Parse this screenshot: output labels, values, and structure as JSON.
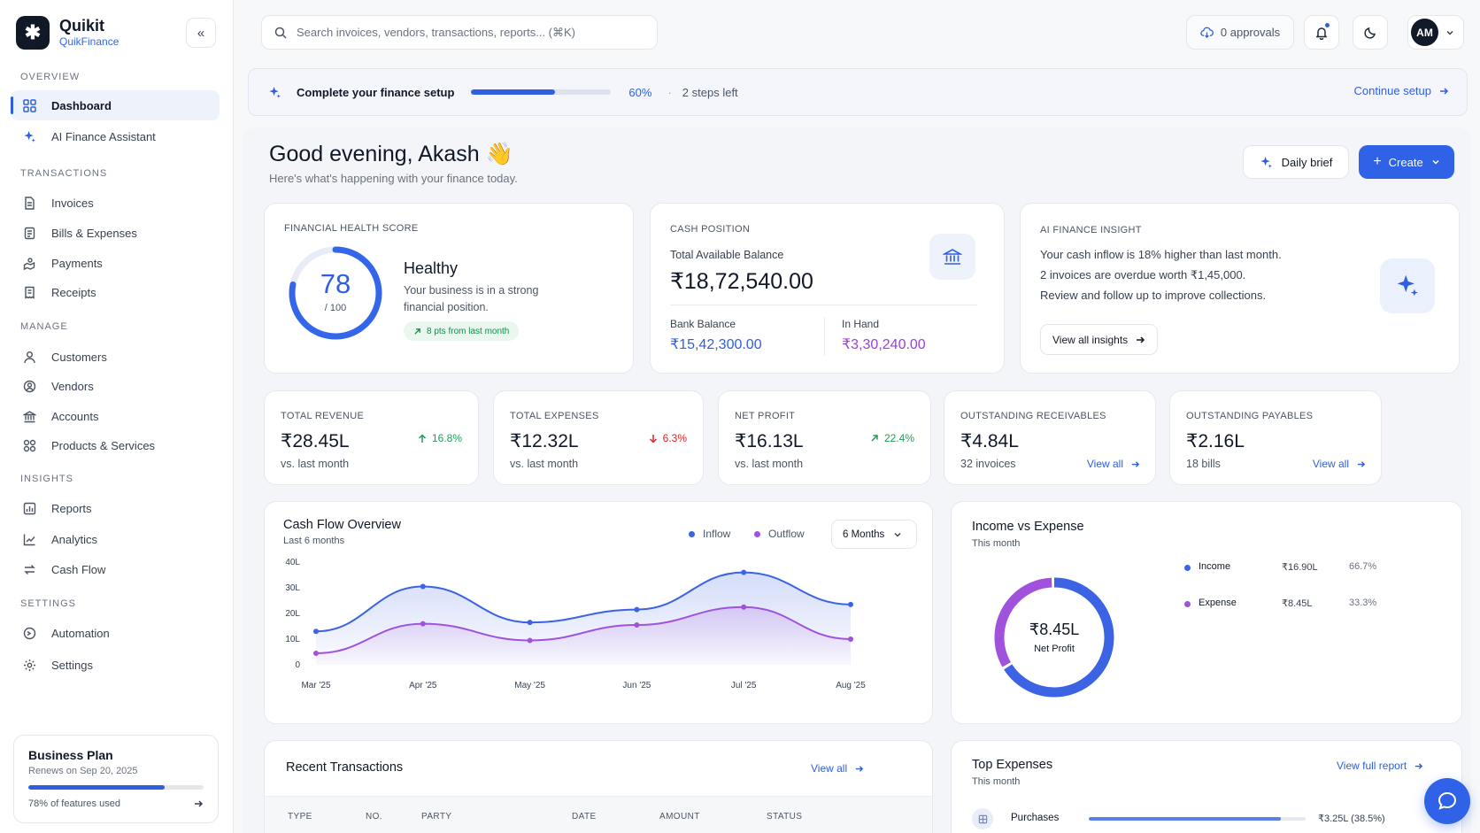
{
  "brand": {
    "logo_glyph": "✱",
    "name": "Quikit",
    "subtitle": "QuikFinance"
  },
  "sidebar": {
    "sections": [
      {
        "title": "OVERVIEW",
        "items": [
          {
            "label": "Dashboard",
            "icon": "grid-icon",
            "active": true
          },
          {
            "label": "AI Finance Assistant",
            "icon": "sparkle-icon"
          }
        ]
      },
      {
        "title": "TRANSACTIONS",
        "items": [
          {
            "label": "Invoices",
            "icon": "invoice-icon"
          },
          {
            "label": "Bills & Expenses",
            "icon": "bill-icon"
          },
          {
            "label": "Payments",
            "icon": "payment-icon"
          },
          {
            "label": "Receipts",
            "icon": "receipt-icon"
          }
        ]
      },
      {
        "title": "MANAGE",
        "items": [
          {
            "label": "Customers",
            "icon": "customers-icon"
          },
          {
            "label": "Vendors",
            "icon": "vendors-icon"
          },
          {
            "label": "Accounts",
            "icon": "bank-icon"
          },
          {
            "label": "Products & Services",
            "icon": "products-icon"
          }
        ]
      },
      {
        "title": "INSIGHTS",
        "items": [
          {
            "label": "Reports",
            "icon": "reports-icon"
          },
          {
            "label": "Analytics",
            "icon": "analytics-icon"
          },
          {
            "label": "Cash Flow",
            "icon": "cashflow-icon"
          }
        ]
      },
      {
        "title": "SETTINGS",
        "items": [
          {
            "label": "Automation",
            "icon": "automation-icon"
          },
          {
            "label": "Settings",
            "icon": "gear-icon"
          }
        ]
      }
    ],
    "plan": {
      "title": "Business Plan",
      "renew": "Renews on Sep 20, 2025",
      "used_label": "78% of features used",
      "used_fraction": 0.78
    }
  },
  "topbar": {
    "search_placeholder": "Search invoices, vendors, transactions, reports... (⌘K)",
    "approvals": "0 approvals",
    "avatar": "AM"
  },
  "setup": {
    "title": "Complete your finance setup",
    "progress_label": "60%",
    "progress_fraction": 0.6,
    "dot": "·",
    "steps_left": "2 steps left",
    "link": "Continue setup"
  },
  "header": {
    "greeting": "Good evening, Akash 👋",
    "subtitle": "Here's what's happening with your finance today.",
    "brief_label": "Daily brief",
    "create_label": "Create"
  },
  "health": {
    "label": "FINANCIAL HEALTH SCORE",
    "score": "78",
    "score_value": 78,
    "max": "/ 100",
    "status": "Healthy",
    "description": "Your business is in a strong financial position.",
    "change": "8 pts from last month"
  },
  "cash": {
    "label": "CASH POSITION",
    "sub": "Total Available Balance",
    "total": "₹18,72,540.00",
    "bank_label": "Bank Balance",
    "bank_value": "₹15,42,300.00",
    "hand_label": "In Hand",
    "hand_value": "₹3,30,240.00"
  },
  "insight": {
    "label": "AI FINANCE INSIGHT",
    "lines": [
      "Your cash inflow is 18% higher than last month.",
      "2 invoices are overdue worth ₹1,45,000.",
      "Review and follow up to improve collections."
    ],
    "button": "View all insights"
  },
  "kpis": [
    {
      "label": "TOTAL REVENUE",
      "value": "₹28.45L",
      "sub": "vs. last month",
      "trend": "16.8%",
      "direction": "up",
      "color": "#1f9d55"
    },
    {
      "label": "TOTAL EXPENSES",
      "value": "₹12.32L",
      "sub": "vs. last month",
      "trend": "6.3%",
      "direction": "down",
      "color": "#e02424"
    },
    {
      "label": "NET PROFIT",
      "value": "₹16.13L",
      "sub": "vs. last month",
      "trend": "22.4%",
      "direction": "up-right",
      "color": "#1f9d55"
    },
    {
      "label": "OUTSTANDING RECEIVABLES",
      "value": "₹4.84L",
      "sub": "32 invoices",
      "link": "View all"
    },
    {
      "label": "OUTSTANDING PAYABLES",
      "value": "₹2.16L",
      "sub": "18 bills",
      "link": "View all"
    }
  ],
  "cashflow": {
    "title": "Cash Flow Overview",
    "subtitle": "Last 6 months",
    "legend": [
      {
        "name": "Inflow",
        "color": "#3b63e3"
      },
      {
        "name": "Outflow",
        "color": "#a052dd"
      }
    ],
    "range": "6 Months"
  },
  "chart_data": {
    "type": "area",
    "title": "Cash Flow Overview",
    "subtitle": "Last 6 months",
    "categories": [
      "Mar '25",
      "Apr '25",
      "May '25",
      "Jun '25",
      "Jul '25",
      "Aug '25"
    ],
    "ytick_labels": [
      "0",
      "10L",
      "20L",
      "30L",
      "40L"
    ],
    "ylim": [
      0,
      40
    ],
    "series": [
      {
        "name": "Inflow",
        "color": "#3b63e3",
        "values": [
          13,
          30.5,
          16.5,
          21.5,
          36,
          23.5
        ]
      },
      {
        "name": "Outflow",
        "color": "#a052dd",
        "values": [
          4.5,
          16,
          9.5,
          15.5,
          22.5,
          10
        ]
      }
    ],
    "legend_position": "top-right",
    "grid": false
  },
  "income_expense": {
    "title": "Income vs Expense",
    "subtitle": "This month",
    "center_value": "₹8.45L",
    "center_label": "Net Profit",
    "rows": [
      {
        "name": "Income",
        "amount": "₹16.90L",
        "pct": "66.7%",
        "color": "#3b63e3",
        "fraction": 0.667
      },
      {
        "name": "Expense",
        "amount": "₹8.45L",
        "pct": "33.3%",
        "color": "#a052dd",
        "fraction": 0.333
      }
    ]
  },
  "recent": {
    "title": "Recent Transactions",
    "link": "View all",
    "columns": [
      "TYPE",
      "NO.",
      "PARTY",
      "DATE",
      "AMOUNT",
      "STATUS"
    ]
  },
  "top_expenses": {
    "title": "Top Expenses",
    "subtitle": "This month",
    "link": "View full report",
    "items": [
      {
        "name": "Purchases",
        "value": "₹3.25L (38.5%)",
        "fraction": 0.885
      }
    ]
  }
}
